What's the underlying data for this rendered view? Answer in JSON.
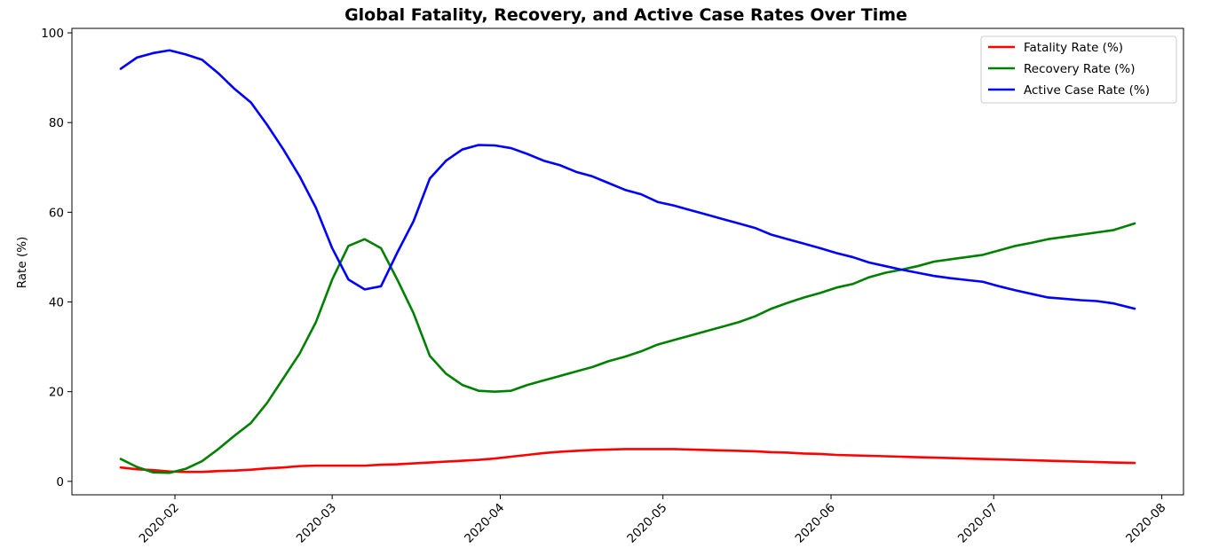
{
  "chart_data": {
    "type": "line",
    "title": "Global Fatality, Recovery, and Active Case Rates Over Time",
    "xlabel": "",
    "ylabel": "Rate (%)",
    "xlim": [
      "2020-01-13",
      "2020-08-05"
    ],
    "ylim": [
      -3,
      101
    ],
    "x_ticks": [
      "2020-02",
      "2020-03",
      "2020-04",
      "2020-05",
      "2020-06",
      "2020-07",
      "2020-08"
    ],
    "y_ticks": [
      0,
      20,
      40,
      60,
      80,
      100
    ],
    "grid": false,
    "legend_position": "upper right",
    "x": [
      "2020-01-22",
      "2020-01-25",
      "2020-01-28",
      "2020-01-31",
      "2020-02-03",
      "2020-02-06",
      "2020-02-09",
      "2020-02-12",
      "2020-02-15",
      "2020-02-18",
      "2020-02-21",
      "2020-02-24",
      "2020-02-27",
      "2020-03-01",
      "2020-03-04",
      "2020-03-07",
      "2020-03-10",
      "2020-03-13",
      "2020-03-16",
      "2020-03-19",
      "2020-03-22",
      "2020-03-25",
      "2020-03-28",
      "2020-03-31",
      "2020-04-03",
      "2020-04-06",
      "2020-04-09",
      "2020-04-12",
      "2020-04-15",
      "2020-04-18",
      "2020-04-21",
      "2020-04-24",
      "2020-04-27",
      "2020-04-30",
      "2020-05-03",
      "2020-05-06",
      "2020-05-09",
      "2020-05-12",
      "2020-05-15",
      "2020-05-18",
      "2020-05-21",
      "2020-05-24",
      "2020-05-27",
      "2020-05-30",
      "2020-06-02",
      "2020-06-05",
      "2020-06-08",
      "2020-06-11",
      "2020-06-14",
      "2020-06-17",
      "2020-06-20",
      "2020-06-23",
      "2020-06-26",
      "2020-06-29",
      "2020-07-02",
      "2020-07-05",
      "2020-07-08",
      "2020-07-11",
      "2020-07-14",
      "2020-07-17",
      "2020-07-20",
      "2020-07-23",
      "2020-07-27"
    ],
    "series": [
      {
        "name": "Fatality Rate (%)",
        "color": "#ff0000",
        "values": [
          3.1,
          2.7,
          2.5,
          2.2,
          2.1,
          2.1,
          2.3,
          2.4,
          2.6,
          2.9,
          3.1,
          3.4,
          3.5,
          3.5,
          3.5,
          3.5,
          3.7,
          3.8,
          4.0,
          4.2,
          4.4,
          4.6,
          4.8,
          5.1,
          5.5,
          5.9,
          6.3,
          6.6,
          6.8,
          7.0,
          7.1,
          7.2,
          7.2,
          7.2,
          7.2,
          7.1,
          7.0,
          6.9,
          6.8,
          6.7,
          6.5,
          6.4,
          6.2,
          6.1,
          5.9,
          5.8,
          5.7,
          5.6,
          5.5,
          5.4,
          5.3,
          5.2,
          5.1,
          5.0,
          4.9,
          4.8,
          4.7,
          4.6,
          4.5,
          4.4,
          4.3,
          4.2,
          4.1
        ]
      },
      {
        "name": "Recovery Rate (%)",
        "color": "#008000",
        "values": [
          5.0,
          3.2,
          2.0,
          1.9,
          2.8,
          4.5,
          7.2,
          10.2,
          13.0,
          17.5,
          23.0,
          28.5,
          35.5,
          45.0,
          52.5,
          54.0,
          52.0,
          45.0,
          37.5,
          28.0,
          24.0,
          21.5,
          20.2,
          20.0,
          20.2,
          21.5,
          22.5,
          23.5,
          24.5,
          25.5,
          26.8,
          27.8,
          29.0,
          30.5,
          31.5,
          32.5,
          33.5,
          34.5,
          35.5,
          36.8,
          38.5,
          39.8,
          41.0,
          42.0,
          43.2,
          44.0,
          45.5,
          46.5,
          47.2,
          48.0,
          49.0,
          49.5,
          50.0,
          50.5,
          51.5,
          52.5,
          53.2,
          54.0,
          54.5,
          55.0,
          55.5,
          56.0,
          57.5
        ]
      },
      {
        "name": "Active Case Rate (%)",
        "color": "#0000ff",
        "values": [
          92.0,
          94.5,
          95.5,
          96.1,
          95.2,
          94.0,
          91.0,
          87.5,
          84.5,
          79.5,
          74.0,
          68.0,
          61.0,
          52.0,
          45.0,
          42.8,
          43.5,
          51.0,
          58.0,
          67.5,
          71.5,
          74.0,
          75.0,
          74.9,
          74.3,
          73.0,
          71.5,
          70.5,
          69.0,
          68.0,
          66.5,
          65.0,
          64.0,
          62.3,
          61.5,
          60.5,
          59.5,
          58.5,
          57.5,
          56.5,
          55.0,
          54.0,
          53.0,
          52.0,
          50.9,
          50.0,
          48.8,
          48.0,
          47.2,
          46.5,
          45.8,
          45.3,
          44.9,
          44.5,
          43.5,
          42.6,
          41.8,
          41.0,
          40.7,
          40.4,
          40.2,
          39.7,
          38.5
        ]
      }
    ]
  }
}
